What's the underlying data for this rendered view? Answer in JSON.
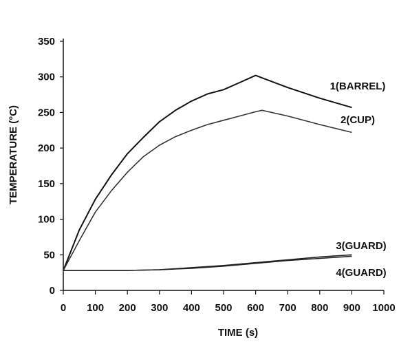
{
  "chart_data": {
    "type": "line",
    "xlabel": "TIME (s)",
    "ylabel": "TEMPERATURE (°C)",
    "xlim": [
      0,
      1000
    ],
    "ylim": [
      0,
      350
    ],
    "x_ticks": [
      0,
      100,
      200,
      300,
      400,
      500,
      600,
      700,
      800,
      900,
      1000
    ],
    "y_ticks": [
      0,
      50,
      100,
      150,
      200,
      250,
      300,
      350
    ],
    "grid": false,
    "series": [
      {
        "name": "1(BARREL)",
        "color": "#111111",
        "x": [
          0,
          50,
          100,
          150,
          200,
          250,
          300,
          350,
          400,
          450,
          500,
          550,
          600,
          700,
          800,
          900
        ],
        "y": [
          28,
          85,
          128,
          162,
          192,
          215,
          237,
          253,
          266,
          276,
          282,
          292,
          302,
          285,
          270,
          257
        ]
      },
      {
        "name": "2(CUP)",
        "color": "#333333",
        "x": [
          0,
          50,
          100,
          150,
          200,
          250,
          300,
          350,
          400,
          450,
          500,
          550,
          600,
          620,
          700,
          800,
          900
        ],
        "y": [
          28,
          70,
          110,
          140,
          166,
          188,
          204,
          216,
          225,
          233,
          239,
          245,
          251,
          253,
          245,
          233,
          222
        ]
      },
      {
        "name": "3(GUARD)",
        "color": "#222222",
        "x": [
          0,
          100,
          200,
          300,
          400,
          500,
          600,
          700,
          800,
          900
        ],
        "y": [
          28,
          28,
          28,
          29,
          32,
          35,
          39,
          43,
          47,
          50
        ]
      },
      {
        "name": "4(GUARD)",
        "color": "#222222",
        "x": [
          0,
          100,
          200,
          300,
          400,
          500,
          600,
          700,
          800,
          900
        ],
        "y": [
          28,
          28,
          28,
          29,
          31,
          34,
          38,
          42,
          45,
          48
        ]
      }
    ]
  }
}
